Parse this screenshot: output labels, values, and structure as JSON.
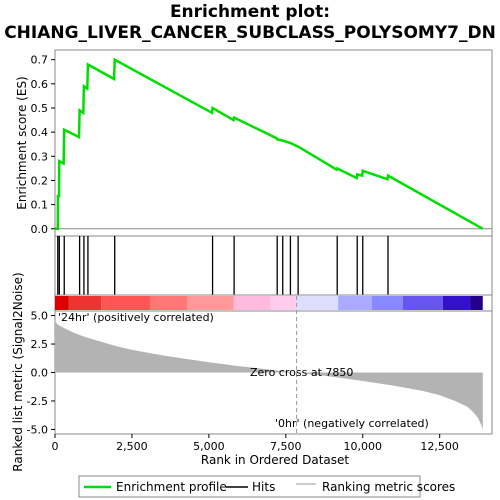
{
  "title_line1": "Enrichment plot:",
  "title_line2": "CHIANG_LIVER_CANCER_SUBCLASS_POLYSOMY7_DN",
  "colors": {
    "es_line": "#00dd00",
    "hits": "#000000",
    "metric_fill": "#b3b3b3",
    "pos_label": "#cc0000",
    "neg_label": "#0000cc",
    "zero_cross_line": "#999999"
  },
  "chart_data": [
    {
      "type": "line",
      "name": "enrichment-score",
      "ylabel": "Enrichment score (ES)",
      "ylim": [
        -0.03,
        0.74
      ],
      "yticks": [
        0.0,
        0.1,
        0.2,
        0.3,
        0.4,
        0.5,
        0.6,
        0.7
      ],
      "ytick_labels": [
        "0.0",
        "0.1",
        "0.2",
        "0.3",
        "0.4",
        "0.5",
        "0.6",
        "0.7"
      ],
      "xlim": [
        0,
        14200
      ],
      "points": [
        [
          0,
          0.0
        ],
        [
          90,
          0.0
        ],
        [
          95,
          0.14
        ],
        [
          130,
          0.13
        ],
        [
          140,
          0.28
        ],
        [
          280,
          0.27
        ],
        [
          300,
          0.41
        ],
        [
          780,
          0.38
        ],
        [
          800,
          0.49
        ],
        [
          920,
          0.48
        ],
        [
          940,
          0.59
        ],
        [
          1050,
          0.58
        ],
        [
          1070,
          0.68
        ],
        [
          1920,
          0.62
        ],
        [
          1940,
          0.7
        ],
        [
          5100,
          0.48
        ],
        [
          5120,
          0.5
        ],
        [
          5800,
          0.45
        ],
        [
          5820,
          0.46
        ],
        [
          7200,
          0.375
        ],
        [
          7220,
          0.37
        ],
        [
          7400,
          0.365
        ],
        [
          7650,
          0.355
        ],
        [
          7900,
          0.34
        ],
        [
          9150,
          0.245
        ],
        [
          9170,
          0.25
        ],
        [
          9800,
          0.21
        ],
        [
          9820,
          0.225
        ],
        [
          9980,
          0.22
        ],
        [
          10000,
          0.24
        ],
        [
          10800,
          0.205
        ],
        [
          10820,
          0.22
        ],
        [
          13900,
          0.0
        ]
      ]
    },
    {
      "type": "hits",
      "name": "hit-positions",
      "x": [
        90,
        140,
        300,
        800,
        940,
        1070,
        1940,
        5120,
        5820,
        7220,
        7400,
        7650,
        7900,
        9170,
        9820,
        10000,
        10820
      ]
    },
    {
      "type": "heatmap",
      "name": "ranking-color-bar",
      "segments": [
        {
          "from": 0,
          "to": 450,
          "color": "#dd0000"
        },
        {
          "from": 450,
          "to": 1500,
          "color": "#ee3333"
        },
        {
          "from": 1500,
          "to": 3100,
          "color": "#ff5555"
        },
        {
          "from": 3100,
          "to": 4300,
          "color": "#ff7777"
        },
        {
          "from": 4300,
          "to": 5800,
          "color": "#ff9999"
        },
        {
          "from": 5800,
          "to": 7000,
          "color": "#ffbbdd"
        },
        {
          "from": 7000,
          "to": 7850,
          "color": "#ffccee"
        },
        {
          "from": 7850,
          "to": 9200,
          "color": "#ddddff"
        },
        {
          "from": 9200,
          "to": 10300,
          "color": "#aaaaff"
        },
        {
          "from": 10300,
          "to": 11300,
          "color": "#8888ff"
        },
        {
          "from": 11300,
          "to": 12600,
          "color": "#6655ee"
        },
        {
          "from": 12600,
          "to": 13500,
          "color": "#3311cc"
        },
        {
          "from": 13500,
          "to": 13900,
          "color": "#220088"
        }
      ]
    },
    {
      "type": "area",
      "name": "ranked-list-metric",
      "ylabel": "Ranked list metric (Signal2Noise)",
      "xlabel": "Rank in Ordered Dataset",
      "ylim": [
        -5.4,
        5.4
      ],
      "yticks": [
        -5.0,
        -2.5,
        0.0,
        2.5,
        5.0
      ],
      "ytick_labels": [
        "-5.0",
        "-2.5",
        "0.0",
        "2.5",
        "5.0"
      ],
      "xticks": [
        0,
        2500,
        5000,
        7500,
        10000,
        12500
      ],
      "xtick_labels": [
        "0",
        "2,500",
        "5,000",
        "7,500",
        "10,000",
        "12,500"
      ],
      "points": [
        [
          0,
          4.6
        ],
        [
          30,
          4.4
        ],
        [
          100,
          4.2
        ],
        [
          300,
          3.9
        ],
        [
          600,
          3.5
        ],
        [
          1000,
          3.1
        ],
        [
          1500,
          2.7
        ],
        [
          2000,
          2.3
        ],
        [
          2500,
          2.0
        ],
        [
          3000,
          1.75
        ],
        [
          3500,
          1.5
        ],
        [
          4000,
          1.3
        ],
        [
          4500,
          1.1
        ],
        [
          5000,
          0.9
        ],
        [
          5500,
          0.72
        ],
        [
          6000,
          0.55
        ],
        [
          6500,
          0.4
        ],
        [
          7000,
          0.25
        ],
        [
          7500,
          0.1
        ],
        [
          7850,
          0.0
        ],
        [
          8500,
          -0.2
        ],
        [
          9000,
          -0.38
        ],
        [
          9500,
          -0.55
        ],
        [
          10000,
          -0.75
        ],
        [
          10500,
          -0.95
        ],
        [
          11000,
          -1.15
        ],
        [
          11500,
          -1.4
        ],
        [
          12000,
          -1.65
        ],
        [
          12500,
          -2.0
        ],
        [
          13000,
          -2.5
        ],
        [
          13400,
          -3.0
        ],
        [
          13600,
          -3.5
        ],
        [
          13750,
          -4.0
        ],
        [
          13850,
          -4.6
        ],
        [
          13900,
          -5.0
        ]
      ],
      "pos_label": "'24hr' (positively correlated)",
      "neg_label": "'0hr' (negatively correlated)",
      "zero_cross_label": "Zero cross at 7850",
      "zero_cross_x": 7850
    }
  ],
  "legend": {
    "items": [
      {
        "label": "Enrichment profile",
        "symbol": "green-line-icon"
      },
      {
        "label": "Hits",
        "symbol": "black-line-icon"
      },
      {
        "label": "Ranking metric scores",
        "symbol": "gray-line-icon"
      }
    ]
  }
}
